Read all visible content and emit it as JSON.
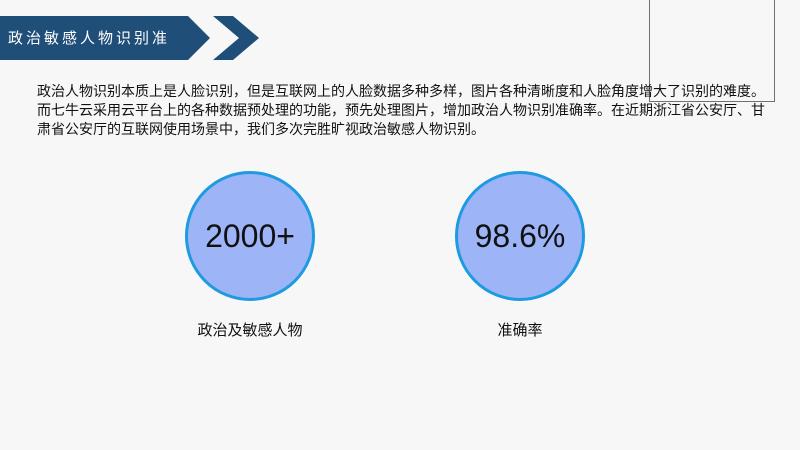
{
  "header": {
    "title": "政治敏感人物识别准"
  },
  "intro": {
    "text": "政治人物识别本质上是人脸识别，但是互联网上的人脸数据多种多样，图片各种清晰度和人脸角度增大了识别的难度。而七牛云采用云平台上的各种数据预处理的功能，预先处理图片，增加政治人物识别准确率。在近期浙江省公安厅、甘肃省公安厅的互联网使用场景中，我们多次完胜旷视政治敏感人物识别。"
  },
  "stats": [
    {
      "value": "2000+",
      "label": "政治及敏感人物"
    },
    {
      "value": "98.6%",
      "label": "准确率"
    }
  ],
  "colors": {
    "banner": "#1f4e79",
    "circle_fill": "#9db4f7",
    "circle_border": "#1e9ae0"
  }
}
